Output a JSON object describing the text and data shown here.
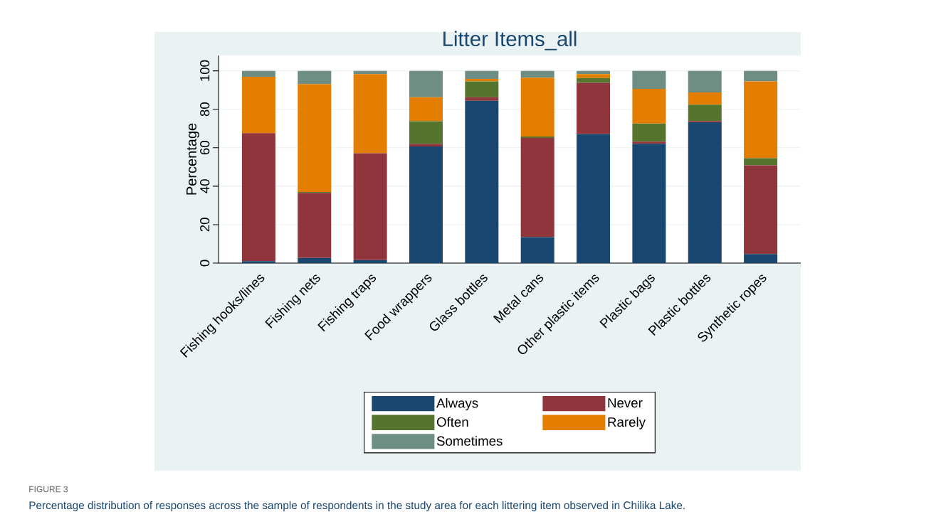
{
  "chart_data": {
    "type": "bar",
    "stacked": true,
    "title": "Litter Items_all",
    "ylabel": "Percentage",
    "categories": [
      "Fishing hooks/lines",
      "Fishing nets",
      "Fishing traps",
      "Food wrappers",
      "Glass bottles",
      "Metal cans",
      "Other plastic items",
      "Plastic bags",
      "Plastic bottles",
      "Synthetic ropes"
    ],
    "series": [
      {
        "name": "Always",
        "color": "#1a476f",
        "values": [
          1,
          2.7,
          1.6,
          60.7,
          84.4,
          13.5,
          67.1,
          62.0,
          73.2,
          4.7
        ]
      },
      {
        "name": "Never",
        "color": "#90353b",
        "values": [
          66.6,
          33.8,
          55.5,
          1.3,
          1.9,
          51.6,
          26.7,
          1.2,
          0.7,
          46.2
        ]
      },
      {
        "name": "Often",
        "color": "#55752f",
        "values": [
          0,
          0.5,
          0,
          11.8,
          8.2,
          0.7,
          2.5,
          9.4,
          8.5,
          3.7
        ]
      },
      {
        "name": "Rarely",
        "color": "#e37e00",
        "values": [
          29.3,
          56.1,
          41.2,
          12.5,
          1.3,
          30.6,
          2.0,
          18.0,
          6.4,
          39.9
        ]
      },
      {
        "name": "Sometimes",
        "color": "#6e8e84",
        "values": [
          3.1,
          6.9,
          1.7,
          13.7,
          4.2,
          3.6,
          1.7,
          9.4,
          11.2,
          5.5
        ]
      }
    ],
    "ylim": [
      0,
      108
    ],
    "yticks": [
      0,
      20,
      40,
      60,
      80,
      100
    ],
    "grid": "y",
    "legend": "bottom",
    "annotations": [
      "FIGURE 3",
      "Percentage distribution of responses across the sample of respondents in the study area for each littering item observed in Chilika Lake."
    ]
  }
}
